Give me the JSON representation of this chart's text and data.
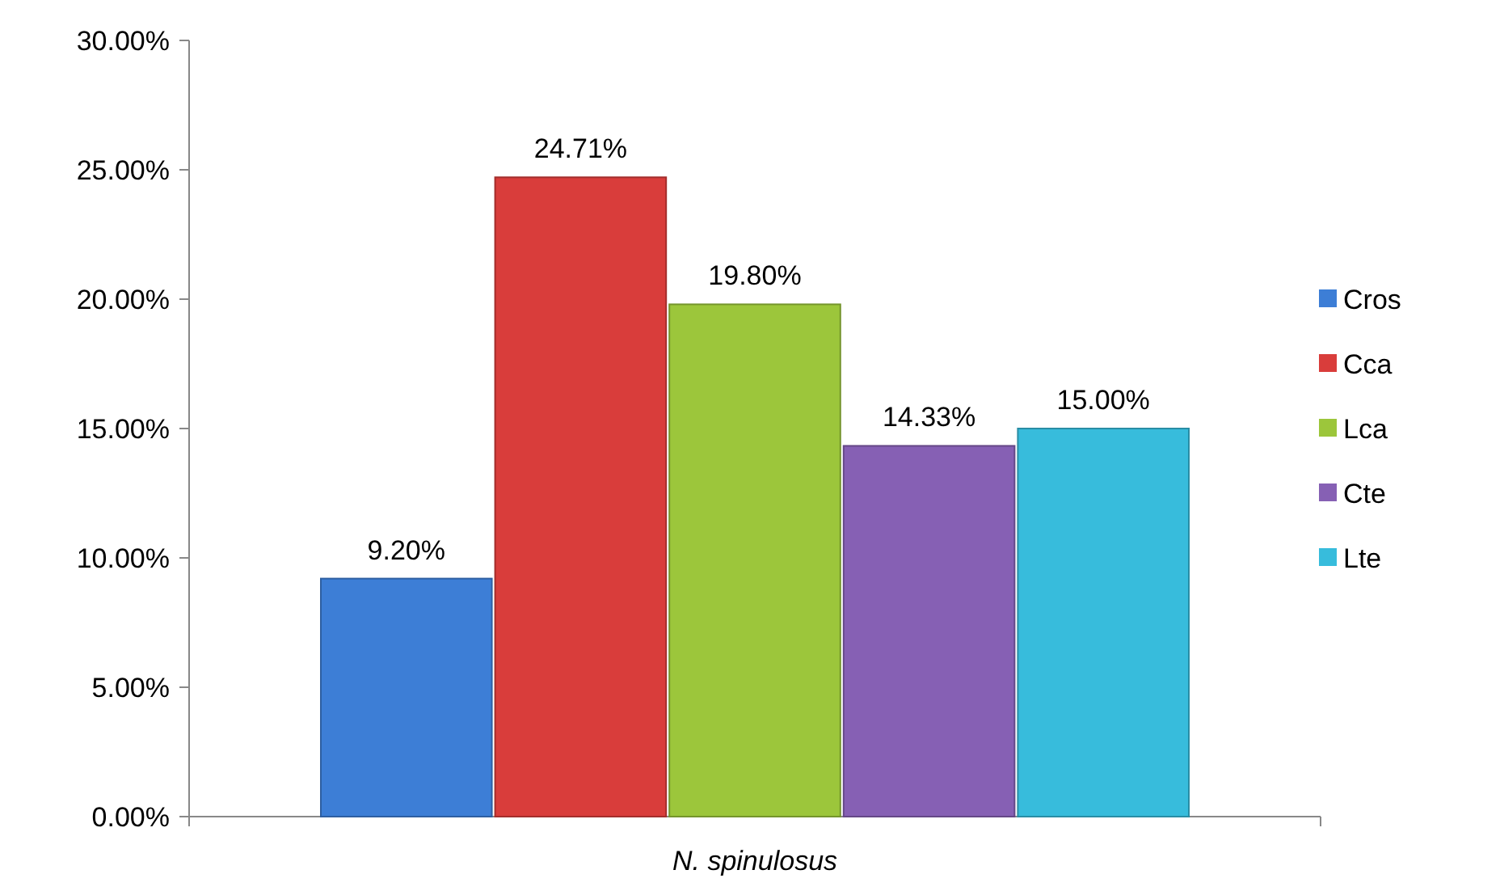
{
  "chart_data": {
    "type": "bar",
    "xlabel": "N. spinulosus",
    "categories": [
      null
    ],
    "series": [
      {
        "name": "Cros",
        "color": "#3d7ed6",
        "values": [
          9.2
        ],
        "value_labels": [
          "9.20%"
        ]
      },
      {
        "name": "Cca",
        "color": "#d93d3b",
        "values": [
          24.71
        ],
        "value_labels": [
          "24.71%"
        ]
      },
      {
        "name": "Lca",
        "color": "#9cc63b",
        "values": [
          19.8
        ],
        "value_labels": [
          "19.80%"
        ]
      },
      {
        "name": "Cte",
        "color": "#8660b4",
        "values": [
          14.33
        ],
        "value_labels": [
          "14.33%"
        ]
      },
      {
        "name": "Lte",
        "color": "#37bcdc",
        "values": [
          15
        ],
        "value_labels": [
          "15.00%"
        ]
      }
    ],
    "ylim": [
      0,
      30
    ],
    "yticks": [
      {
        "value": 0,
        "label": "0.00%"
      },
      {
        "value": 5,
        "label": "5.00%"
      },
      {
        "value": 10,
        "label": "10.00%"
      },
      {
        "value": 15,
        "label": "15.00%"
      },
      {
        "value": 20,
        "label": "20.00%"
      },
      {
        "value": 25,
        "label": "25.00%"
      },
      {
        "value": 30,
        "label": "30.00%"
      }
    ],
    "grid": false,
    "legend": "right"
  }
}
